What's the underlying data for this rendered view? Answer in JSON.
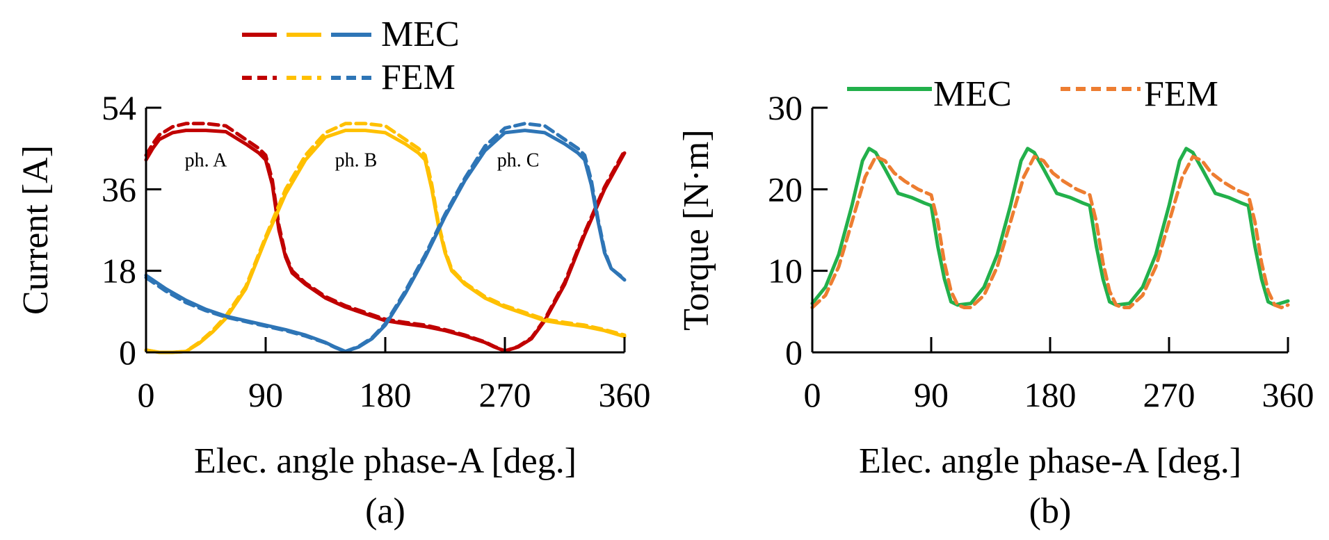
{
  "chart_data": [
    {
      "type": "line",
      "caption": "(a)",
      "xlabel": "Elec. angle phase-A [deg.]",
      "ylabel": "Current [A]",
      "xlim": [
        0,
        360
      ],
      "ylim": [
        0,
        54
      ],
      "xticks": [
        "0",
        "90",
        "180",
        "270",
        "360"
      ],
      "yticks": [
        "0",
        "18",
        "36",
        "54"
      ],
      "legend": [
        {
          "label": "MEC",
          "style": "solid"
        },
        {
          "label": "FEM",
          "style": "dashed"
        }
      ],
      "annotations": [
        {
          "text": "ph. A",
          "x": 45,
          "y": 41
        },
        {
          "text": "ph. B",
          "x": 158,
          "y": 41
        },
        {
          "text": "ph. C",
          "x": 280,
          "y": 41
        }
      ],
      "colors": {
        "phA": "#c00000",
        "phB": "#ffc000",
        "phC": "#2e75b6"
      },
      "series": [
        {
          "name": "ph. A MEC",
          "color": "#c00000",
          "style": "solid",
          "x": [
            0,
            5,
            10,
            20,
            30,
            45,
            60,
            75,
            85,
            90,
            95,
            100,
            105,
            110,
            120,
            135,
            150,
            165,
            180,
            195,
            210,
            225,
            240,
            255,
            262,
            270,
            280,
            290,
            300,
            315,
            330,
            345,
            360
          ],
          "y": [
            42.5,
            45,
            47,
            48.5,
            49,
            49,
            48.7,
            46,
            44,
            42.5,
            37,
            27,
            21,
            17.5,
            15,
            12,
            10,
            8.5,
            7,
            6.3,
            5.7,
            4.8,
            3.6,
            2.2,
            1.2,
            0.3,
            1.2,
            3,
            7,
            15,
            26,
            36,
            44
          ]
        },
        {
          "name": "ph. A FEM",
          "color": "#c00000",
          "style": "dashed",
          "x": [
            0,
            5,
            10,
            20,
            30,
            45,
            60,
            75,
            85,
            90,
            95,
            100,
            105,
            110,
            120,
            135,
            150,
            165,
            180,
            195,
            210,
            225,
            240,
            255,
            262,
            270,
            280,
            290,
            300,
            315,
            330,
            345,
            360
          ],
          "y": [
            43.5,
            46,
            48,
            49.8,
            50.5,
            50.5,
            50,
            47,
            45,
            43.5,
            38,
            28,
            21.5,
            18,
            15.3,
            12.3,
            10.3,
            8.8,
            7.3,
            6.6,
            6,
            5,
            3.8,
            2.3,
            1.3,
            0.3,
            1.3,
            3.2,
            7.3,
            15.5,
            26.5,
            36.5,
            44.5
          ]
        },
        {
          "name": "ph. B MEC",
          "color": "#ffc000",
          "style": "solid",
          "x": [
            0,
            10,
            20,
            30,
            40,
            50,
            60,
            75,
            90,
            105,
            120,
            135,
            150,
            165,
            180,
            195,
            205,
            210,
            215,
            220,
            225,
            230,
            240,
            255,
            270,
            285,
            300,
            315,
            330,
            345,
            360
          ],
          "y": [
            0.5,
            0,
            0,
            0.2,
            2,
            4.5,
            7.5,
            14,
            25,
            35,
            42.5,
            47.5,
            49,
            49,
            48.5,
            46,
            44,
            42.5,
            36,
            28,
            22,
            18,
            15,
            12,
            10,
            8.5,
            7,
            6.3,
            5.7,
            4.8,
            3.5
          ]
        },
        {
          "name": "ph. B FEM",
          "color": "#ffc000",
          "style": "dashed",
          "x": [
            0,
            10,
            20,
            30,
            40,
            50,
            60,
            75,
            90,
            105,
            120,
            135,
            150,
            165,
            180,
            195,
            205,
            210,
            215,
            220,
            225,
            230,
            240,
            255,
            270,
            285,
            300,
            315,
            330,
            345,
            360
          ],
          "y": [
            0.5,
            0,
            0,
            0.2,
            2.2,
            4.8,
            8,
            14.5,
            25.5,
            36,
            43.5,
            48.5,
            50.5,
            50.5,
            50,
            47,
            45,
            43.5,
            37,
            28.5,
            22.5,
            18.3,
            15.3,
            12.3,
            10.3,
            8.8,
            7.3,
            6.6,
            6,
            5,
            3.8
          ]
        },
        {
          "name": "ph. C MEC",
          "color": "#2e75b6",
          "style": "solid",
          "x": [
            0,
            15,
            30,
            45,
            60,
            75,
            90,
            105,
            120,
            135,
            142,
            150,
            160,
            170,
            180,
            195,
            210,
            225,
            240,
            255,
            270,
            285,
            300,
            315,
            325,
            330,
            335,
            340,
            345,
            350,
            360
          ],
          "y": [
            17,
            14,
            11.5,
            9.5,
            8,
            7,
            6,
            5,
            3.8,
            2.2,
            1.2,
            0.2,
            1.2,
            3,
            6,
            13,
            21,
            30,
            38,
            44.5,
            48.5,
            49,
            48.5,
            46,
            44,
            42.5,
            37,
            29,
            22,
            18.5,
            16
          ]
        },
        {
          "name": "ph. C FEM",
          "color": "#2e75b6",
          "style": "dashed",
          "x": [
            0,
            15,
            30,
            45,
            60,
            75,
            90,
            105,
            120,
            135,
            142,
            150,
            160,
            170,
            180,
            195,
            210,
            225,
            240,
            255,
            270,
            285,
            300,
            315,
            325,
            330,
            335,
            340,
            345,
            350,
            360
          ],
          "y": [
            16.5,
            13.5,
            11,
            9.2,
            7.8,
            6.8,
            5.8,
            4.8,
            3.6,
            2.1,
            1.1,
            0.2,
            1.3,
            3.2,
            6.3,
            13.5,
            21.5,
            30.5,
            38.5,
            45.5,
            49.5,
            50.5,
            50,
            47,
            45,
            43.5,
            38,
            29.5,
            22.5,
            18.5,
            16.2
          ]
        }
      ]
    },
    {
      "type": "line",
      "caption": "(b)",
      "xlabel": "Elec. angle phase-A [deg.]",
      "ylabel": "Torque [N·m]",
      "xlim": [
        0,
        360
      ],
      "ylim": [
        0,
        30
      ],
      "xticks": [
        "0",
        "90",
        "180",
        "270",
        "360"
      ],
      "yticks": [
        "0",
        "10",
        "20",
        "30"
      ],
      "legend": [
        {
          "label": "MEC",
          "style": "solid",
          "color": "#22b04b"
        },
        {
          "label": "FEM",
          "style": "dashed",
          "color": "#ed7d31"
        }
      ],
      "series": [
        {
          "name": "MEC",
          "color": "#22b04b",
          "style": "solid",
          "x": [
            0,
            10,
            20,
            30,
            38,
            43,
            48,
            55,
            65,
            75,
            85,
            90,
            95,
            100,
            105,
            110,
            120,
            130,
            140,
            150,
            158,
            163,
            168,
            175,
            185,
            195,
            205,
            210,
            215,
            220,
            225,
            230,
            240,
            250,
            260,
            270,
            278,
            283,
            288,
            295,
            305,
            315,
            325,
            330,
            335,
            340,
            345,
            350,
            360
          ],
          "y": [
            6,
            8,
            12,
            18,
            23.5,
            25,
            24.5,
            22.5,
            19.5,
            19,
            18.3,
            18,
            13,
            9,
            6.2,
            5.8,
            6,
            8,
            12,
            18,
            23.5,
            25,
            24.5,
            22.5,
            19.5,
            19,
            18.3,
            18,
            13,
            9,
            6.2,
            5.8,
            6,
            8,
            12,
            18,
            23.5,
            25,
            24.5,
            22.5,
            19.5,
            19,
            18.3,
            18,
            13,
            9,
            6.2,
            5.8,
            6.3
          ]
        },
        {
          "name": "FEM",
          "color": "#ed7d31",
          "style": "dashed",
          "x": [
            0,
            10,
            20,
            30,
            40,
            48,
            55,
            62,
            70,
            80,
            90,
            95,
            100,
            105,
            110,
            115,
            120,
            130,
            140,
            150,
            160,
            168,
            175,
            182,
            190,
            200,
            210,
            215,
            220,
            225,
            230,
            235,
            240,
            250,
            260,
            270,
            280,
            288,
            295,
            302,
            310,
            320,
            330,
            335,
            340,
            345,
            350,
            355,
            360
          ],
          "y": [
            5.5,
            7,
            10.5,
            16,
            21.5,
            24,
            23.5,
            22,
            21,
            20,
            19.3,
            16,
            11,
            7.5,
            5.8,
            5.5,
            5.5,
            7,
            10.5,
            16,
            21.5,
            24,
            23.5,
            22,
            21,
            20,
            19.3,
            16,
            11,
            7.5,
            5.8,
            5.5,
            5.5,
            7,
            10.5,
            16,
            21.5,
            24,
            23.5,
            22,
            21,
            20,
            19.3,
            16,
            11,
            7.5,
            5.8,
            5.5,
            5.8
          ]
        }
      ]
    }
  ]
}
